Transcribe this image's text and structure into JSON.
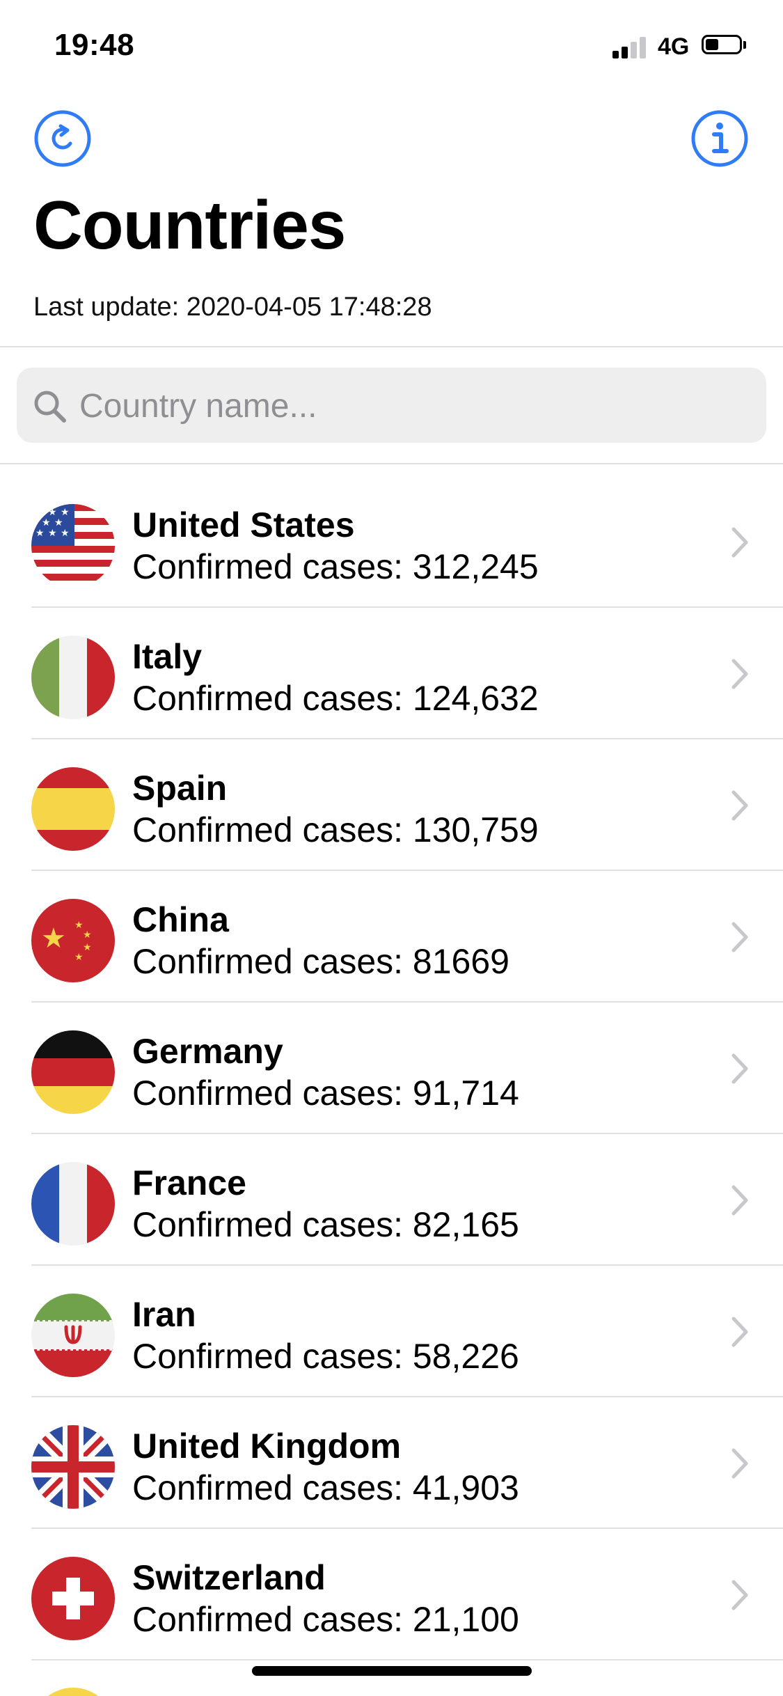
{
  "status_bar": {
    "time": "19:48",
    "network": "4G",
    "signal_bars_active": 2,
    "signal_bars_total": 4,
    "battery_level": 0.3
  },
  "header": {
    "refresh_icon": "refresh-icon",
    "info_icon": "info-icon",
    "title": "Countries",
    "last_update": "Last update: 2020-04-05 17:48:28"
  },
  "search": {
    "placeholder": "Country name...",
    "value": "",
    "icon": "search-icon"
  },
  "countries": [
    {
      "name": "United States",
      "cases": "Confirmed cases: 312,245",
      "flag": "us-flag-icon"
    },
    {
      "name": "Italy",
      "cases": "Confirmed cases: 124,632",
      "flag": "italy-flag-icon"
    },
    {
      "name": "Spain",
      "cases": "Confirmed cases: 130,759",
      "flag": "spain-flag-icon"
    },
    {
      "name": "China",
      "cases": "Confirmed cases: 81669",
      "flag": "china-flag-icon"
    },
    {
      "name": "Germany",
      "cases": "Confirmed cases: 91,714",
      "flag": "germany-flag-icon"
    },
    {
      "name": "France",
      "cases": "Confirmed cases: 82,165",
      "flag": "france-flag-icon"
    },
    {
      "name": "Iran",
      "cases": "Confirmed cases: 58,226",
      "flag": "iran-flag-icon"
    },
    {
      "name": "United Kingdom",
      "cases": "Confirmed cases: 41,903",
      "flag": "uk-flag-icon"
    },
    {
      "name": "Switzerland",
      "cases": "Confirmed cases: 21,100",
      "flag": "switzerland-flag-icon"
    }
  ],
  "colors": {
    "accent": "#2f7cf6",
    "separator": "#e0e0e4",
    "search_bg": "#eeeeef",
    "placeholder": "#8e8e93",
    "chevron": "#c7c7cc"
  }
}
